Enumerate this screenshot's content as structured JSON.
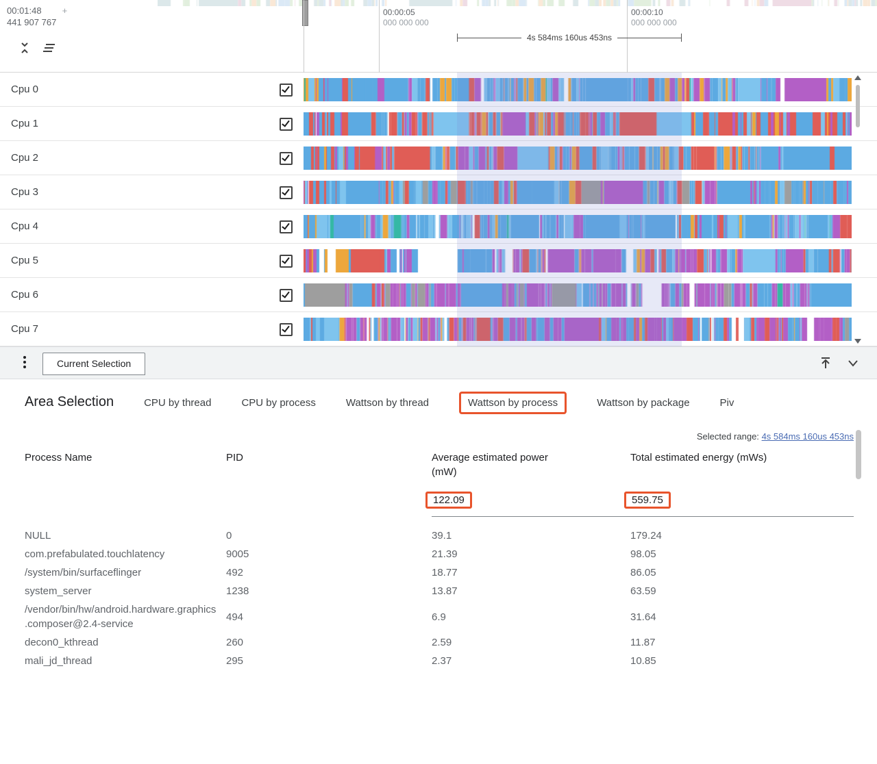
{
  "colors": {
    "annotation": "#e8542c",
    "link": "#4a6cb3",
    "selection_overlay": "rgba(123,134,212,0.18)"
  },
  "icons": {
    "collapse_tracks": "unfold-less-icon",
    "flatten_tracks": "flatten-icon",
    "more_options": "kebab-menu-icon",
    "scroll_to_top": "scroll-to-top-icon",
    "collapse_panel": "chevron-down-icon"
  },
  "timeline": {
    "cursor_time": "00:01:48",
    "cursor_suffix": "+",
    "cursor_ns": "441 907 767",
    "ticks": [
      {
        "time": "00:00:05",
        "ns": "000 000 000"
      },
      {
        "time": "00:00:10",
        "ns": "000 000 000"
      }
    ],
    "range_bracket_label": "4s 584ms 160us 453ns"
  },
  "minimap_palette": [
    [
      "#ffffff",
      4
    ],
    [
      "#d9ead3",
      1
    ],
    [
      "#cfe2f3",
      1
    ],
    [
      "#f9e0c8",
      0.7
    ],
    [
      "#ead1dc",
      0.5
    ],
    [
      "#d0e0e3",
      0.8
    ]
  ],
  "tracks": [
    {
      "name": "Cpu 0",
      "checked": true,
      "palette": [
        [
          "#5caae2",
          5
        ],
        [
          "#b35fc6",
          2
        ],
        [
          "#eda73c",
          1.6
        ],
        [
          "#7fc4ee",
          1
        ],
        [
          "#e05d56",
          0.5
        ],
        [
          "#35b8a5",
          0.3
        ],
        [
          "#ffffff",
          0.2
        ]
      ]
    },
    {
      "name": "Cpu 1",
      "checked": true,
      "palette": [
        [
          "#e05d56",
          3.2
        ],
        [
          "#5caae2",
          3.6
        ],
        [
          "#b35fc6",
          1.6
        ],
        [
          "#7fc4ee",
          0.8
        ],
        [
          "#eda73c",
          0.4
        ],
        [
          "#ffffff",
          0.2
        ]
      ]
    },
    {
      "name": "Cpu 2",
      "checked": true,
      "palette": [
        [
          "#5caae2",
          4.2
        ],
        [
          "#e05d56",
          2.6
        ],
        [
          "#b35fc6",
          1.2
        ],
        [
          "#7fc4ee",
          1
        ],
        [
          "#eda73c",
          0.6
        ],
        [
          "#35b8a5",
          0.2
        ]
      ]
    },
    {
      "name": "Cpu 3",
      "checked": true,
      "palette": [
        [
          "#5caae2",
          4.6
        ],
        [
          "#b35fc6",
          1.6
        ],
        [
          "#e05d56",
          1.2
        ],
        [
          "#7fc4ee",
          1.2
        ],
        [
          "#eda73c",
          0.6
        ],
        [
          "#9e9e9e",
          0.9
        ],
        [
          "#ffffff",
          0.2
        ]
      ]
    },
    {
      "name": "Cpu 4",
      "checked": true,
      "palette": [
        [
          "#5caae2",
          5.5
        ],
        [
          "#7fc4ee",
          2
        ],
        [
          "#b35fc6",
          1.2
        ],
        [
          "#eda73c",
          0.5
        ],
        [
          "#e05d56",
          0.4
        ],
        [
          "#ffffff",
          0.6
        ],
        [
          "#35b8a5",
          0.2
        ]
      ]
    },
    {
      "name": "Cpu 5",
      "checked": true,
      "palette": [
        [
          "#b35fc6",
          3.4
        ],
        [
          "#5caae2",
          3
        ],
        [
          "#e05d56",
          1.4
        ],
        [
          "#ffffff",
          1
        ],
        [
          "#7fc4ee",
          0.8
        ],
        [
          "#eda73c",
          0.5
        ]
      ]
    },
    {
      "name": "Cpu 6",
      "checked": true,
      "palette": [
        [
          "#b35fc6",
          4.8
        ],
        [
          "#5caae2",
          2.4
        ],
        [
          "#9e9e9e",
          0.8
        ],
        [
          "#7fc4ee",
          0.6
        ],
        [
          "#e05d56",
          0.5
        ],
        [
          "#35b8a5",
          0.3
        ],
        [
          "#ffffff",
          0.3
        ]
      ]
    },
    {
      "name": "Cpu 7",
      "checked": true,
      "palette": [
        [
          "#b35fc6",
          3.2
        ],
        [
          "#5caae2",
          2.8
        ],
        [
          "#e05d56",
          1.6
        ],
        [
          "#ffffff",
          0.8
        ],
        [
          "#7fc4ee",
          0.8
        ],
        [
          "#eda73c",
          0.5
        ],
        [
          "#9e9e9e",
          0.3
        ]
      ]
    }
  ],
  "tab_bar": {
    "current_tab": "Current Selection"
  },
  "details": {
    "title": "Area Selection",
    "tabs": [
      {
        "label": "CPU by thread",
        "highlighted": false
      },
      {
        "label": "CPU by process",
        "highlighted": false
      },
      {
        "label": "Wattson by thread",
        "highlighted": false
      },
      {
        "label": "Wattson by process",
        "highlighted": true
      },
      {
        "label": "Wattson by package",
        "highlighted": false
      },
      {
        "label": "Piv",
        "highlighted": false
      }
    ],
    "selected_range_label": "Selected range:",
    "selected_range_value": "4s 584ms 160us 453ns",
    "table": {
      "columns": [
        "Process Name",
        "PID",
        "Average estimated power (mW)",
        "Total estimated energy (mWs)"
      ],
      "totals": {
        "avg_power": "122.09",
        "total_energy": "559.75"
      },
      "rows": [
        {
          "name": "NULL",
          "pid": "0",
          "avg_power": "39.1",
          "total_energy": "179.24"
        },
        {
          "name": "com.prefabulated.touchlatency",
          "pid": "9005",
          "avg_power": "21.39",
          "total_energy": "98.05"
        },
        {
          "name": "/system/bin/surfaceflinger",
          "pid": "492",
          "avg_power": "18.77",
          "total_energy": "86.05"
        },
        {
          "name": "system_server",
          "pid": "1238",
          "avg_power": "13.87",
          "total_energy": "63.59"
        },
        {
          "name": "/vendor/bin/hw/android.hardware.graphics.composer@2.4-service",
          "pid": "494",
          "avg_power": "6.9",
          "total_energy": "31.64"
        },
        {
          "name": "decon0_kthread",
          "pid": "260",
          "avg_power": "2.59",
          "total_energy": "11.87"
        },
        {
          "name": "mali_jd_thread",
          "pid": "295",
          "avg_power": "2.37",
          "total_energy": "10.85"
        }
      ]
    }
  }
}
